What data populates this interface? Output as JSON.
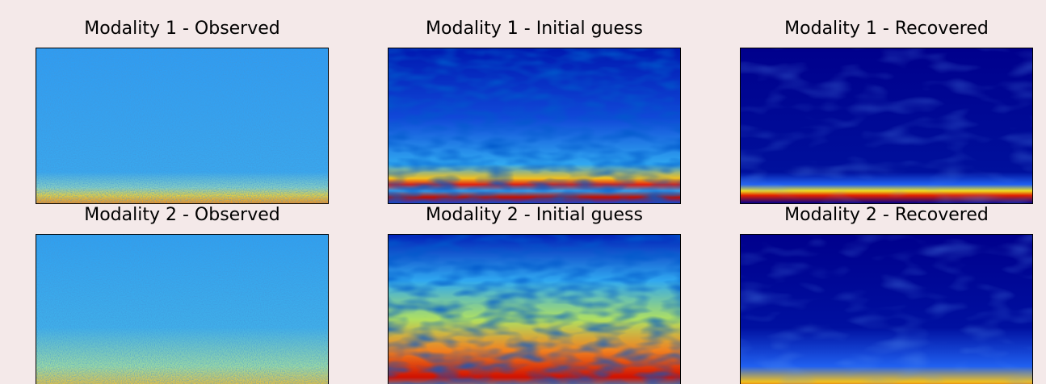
{
  "panels": [
    {
      "title": "Modality 1 - Observed"
    },
    {
      "title": "Modality 1 - Initial guess"
    },
    {
      "title": "Modality 1 - Recovered"
    },
    {
      "title": "Modality 2 - Observed"
    },
    {
      "title": "Modality 2 - Initial guess"
    },
    {
      "title": "Modality 2 - Recovered"
    }
  ]
}
